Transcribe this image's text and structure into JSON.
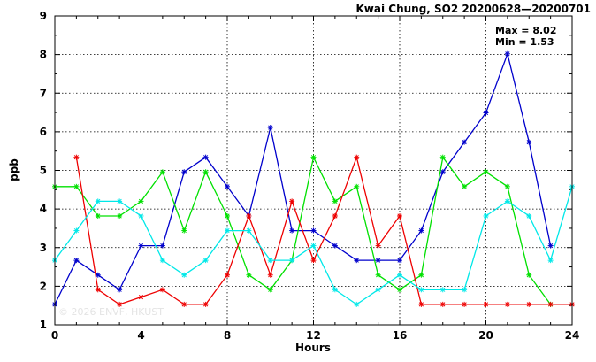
{
  "chart_data": {
    "type": "line",
    "title": "Kwai Chung, SO2 20200628—20200701",
    "xlabel": "Hours",
    "ylabel": "ppb",
    "xlim": [
      0,
      24
    ],
    "ylim": [
      1,
      9
    ],
    "xticks": [
      0,
      4,
      8,
      12,
      16,
      20,
      24
    ],
    "yticks": [
      1,
      2,
      3,
      4,
      5,
      6,
      7,
      8,
      9
    ],
    "grid": true,
    "annotations": [
      "Max = 8.02",
      "Min = 1.53"
    ],
    "watermark": "© 2026  ENVF, HKUST",
    "series": [
      {
        "color": "#0000cc",
        "x": [
          0,
          1,
          2,
          3,
          4,
          5,
          6,
          7,
          8,
          9,
          10,
          11,
          12,
          13,
          14,
          15,
          16,
          17,
          18,
          19,
          20,
          21,
          22,
          23
        ],
        "values": [
          1.53,
          2.67,
          2.29,
          1.91,
          3.05,
          3.05,
          4.96,
          5.34,
          4.58,
          3.82,
          6.11,
          3.44,
          3.44,
          3.05,
          2.67,
          2.67,
          2.67,
          3.44,
          4.96,
          5.73,
          6.49,
          8.02,
          5.73,
          3.05
        ]
      },
      {
        "color": "#00e000",
        "x": [
          0,
          1,
          2,
          3,
          4,
          5,
          6,
          7,
          8,
          9,
          10,
          11,
          12,
          13,
          14,
          15,
          16,
          17,
          18,
          19,
          20,
          21,
          22,
          23
        ],
        "values": [
          4.58,
          4.58,
          3.82,
          3.82,
          4.2,
          4.96,
          3.44,
          4.96,
          3.82,
          2.29,
          1.91,
          2.67,
          5.34,
          4.2,
          4.58,
          2.29,
          1.91,
          2.29,
          5.34,
          4.58,
          4.96,
          4.58,
          2.29,
          1.53
        ]
      },
      {
        "color": "#ee0000",
        "x": [
          1,
          2,
          3,
          4,
          5,
          6,
          7,
          8,
          9,
          10,
          11,
          12,
          13,
          14,
          15,
          16,
          17,
          18,
          19,
          20,
          21,
          22,
          23,
          24
        ],
        "values": [
          5.34,
          1.91,
          1.53,
          1.72,
          1.91,
          1.53,
          1.53,
          2.29,
          3.82,
          2.29,
          4.2,
          2.67,
          3.82,
          5.34,
          3.05,
          3.82,
          1.53,
          1.53,
          1.53,
          1.53,
          1.53,
          1.53,
          1.53,
          1.53
        ]
      },
      {
        "color": "#00e8e8",
        "x": [
          0,
          1,
          2,
          3,
          4,
          5,
          6,
          7,
          8,
          9,
          10,
          11,
          12,
          13,
          14,
          15,
          16,
          17,
          18,
          19,
          20,
          21,
          22,
          23,
          24
        ],
        "values": [
          2.67,
          3.44,
          4.2,
          4.2,
          3.82,
          2.67,
          2.29,
          2.67,
          3.44,
          3.44,
          2.67,
          2.67,
          3.05,
          1.91,
          1.53,
          1.91,
          2.29,
          1.91,
          1.91,
          1.91,
          3.82,
          4.2,
          3.82,
          2.67,
          4.58
        ]
      }
    ]
  }
}
